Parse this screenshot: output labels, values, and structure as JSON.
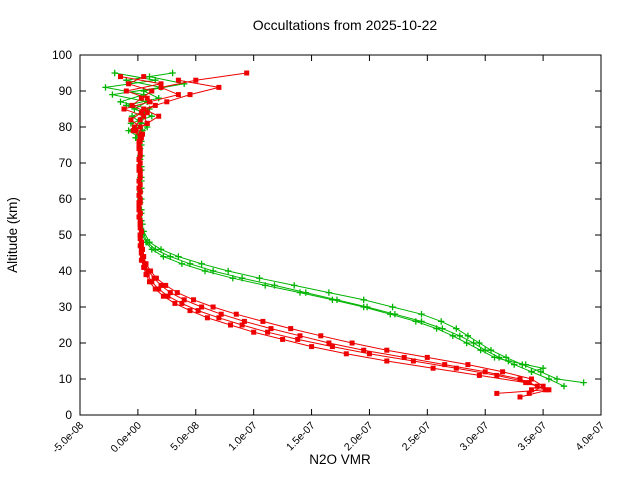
{
  "chart_data": {
    "type": "line",
    "title": "Occultations from 2025-10-22",
    "xlabel": "N2O VMR",
    "ylabel": "Altitude (km)",
    "xlim": [
      -5e-08,
      4e-07
    ],
    "ylim": [
      0,
      100
    ],
    "grid": false,
    "legend": "none",
    "vmr_scale": 1e-09,
    "colors": {
      "red": "#ee0000",
      "green": "#00b400",
      "axis": "#000000",
      "background": "#ffffff"
    },
    "x_ticks": [
      {
        "value": -5e-08,
        "label": "-5.0e-08"
      },
      {
        "value": 0.0,
        "label": "0.0e+00"
      },
      {
        "value": 5e-08,
        "label": "5.0e-08"
      },
      {
        "value": 1e-07,
        "label": "1.0e-07"
      },
      {
        "value": 1.5e-07,
        "label": "1.5e-07"
      },
      {
        "value": 2e-07,
        "label": "2.0e-07"
      },
      {
        "value": 2.5e-07,
        "label": "2.5e-07"
      },
      {
        "value": 3e-07,
        "label": "3.0e-07"
      },
      {
        "value": 3.5e-07,
        "label": "3.5e-07"
      },
      {
        "value": 4e-07,
        "label": "4.0e-07"
      }
    ],
    "y_ticks": [
      {
        "value": 0,
        "label": "0"
      },
      {
        "value": 10,
        "label": "10"
      },
      {
        "value": 20,
        "label": "20"
      },
      {
        "value": 30,
        "label": "30"
      },
      {
        "value": 40,
        "label": "40"
      },
      {
        "value": 50,
        "label": "50"
      },
      {
        "value": 60,
        "label": "60"
      },
      {
        "value": 70,
        "label": "70"
      },
      {
        "value": 80,
        "label": "80"
      },
      {
        "value": 90,
        "label": "90"
      },
      {
        "value": 100,
        "label": "100"
      }
    ],
    "series": [
      {
        "name": "green-1",
        "color": "green",
        "marker": "plus",
        "alt_km": [
          95,
          93,
          91,
          89,
          87,
          85,
          83,
          81,
          79,
          77,
          75,
          72,
          69,
          66,
          63,
          60,
          57,
          54,
          51,
          48,
          46,
          44,
          42,
          40,
          38,
          36,
          34,
          32,
          30,
          28,
          26,
          24,
          22,
          20,
          18,
          16,
          14,
          12,
          10,
          8
        ],
        "vmr_1e9": [
          -20,
          15,
          -28,
          5,
          -15,
          10,
          -5,
          3,
          -8,
          2,
          3,
          2,
          3,
          2,
          3,
          2,
          3,
          3,
          4,
          8,
          15,
          28,
          45,
          65,
          90,
          118,
          145,
          172,
          198,
          222,
          245,
          263,
          278,
          290,
          300,
          312,
          325,
          340,
          355,
          368
        ]
      },
      {
        "name": "green-2",
        "color": "green",
        "marker": "plus",
        "alt_km": [
          95,
          93,
          91,
          89,
          87,
          85,
          83,
          81,
          79,
          77,
          75,
          72,
          69,
          66,
          63,
          60,
          57,
          54,
          51,
          48,
          46,
          44,
          42,
          40,
          38,
          36,
          34,
          32,
          30,
          28,
          26,
          24,
          22,
          20,
          18,
          16,
          14,
          12,
          10,
          9
        ],
        "vmr_1e9": [
          30,
          -10,
          20,
          -22,
          8,
          -3,
          12,
          -6,
          4,
          -2,
          2,
          3,
          2,
          3,
          2,
          3,
          2,
          3,
          5,
          10,
          20,
          35,
          55,
          78,
          105,
          135,
          165,
          195,
          220,
          245,
          262,
          275,
          285,
          295,
          305,
          318,
          332,
          348,
          362,
          385
        ]
      },
      {
        "name": "green-3",
        "color": "green",
        "marker": "plus",
        "alt_km": [
          94,
          92,
          90,
          88,
          86,
          84,
          82,
          80,
          78,
          76,
          74,
          71,
          68,
          65,
          62,
          59,
          56,
          53,
          50,
          48,
          46,
          44,
          42,
          40,
          38,
          36,
          34,
          32,
          30,
          28,
          26,
          24,
          22,
          20,
          18,
          16,
          15,
          14,
          13,
          12
        ],
        "vmr_1e9": [
          10,
          40,
          5,
          18,
          -10,
          5,
          2,
          8,
          1,
          3,
          2,
          2,
          3,
          3,
          2,
          2,
          3,
          4,
          4,
          7,
          12,
          22,
          38,
          58,
          82,
          110,
          140,
          168,
          195,
          218,
          240,
          258,
          272,
          284,
          296,
          308,
          320,
          335,
          350,
          340
        ]
      },
      {
        "name": "red-1",
        "color": "red",
        "marker": "square",
        "alt_km": [
          94,
          92,
          90,
          88,
          86,
          84,
          82,
          80,
          78,
          76,
          74,
          71,
          68,
          65,
          62,
          59,
          56,
          53,
          50,
          48,
          46,
          44,
          42,
          40,
          38,
          36,
          34,
          32,
          30,
          28,
          26,
          24,
          22,
          20,
          18,
          16,
          14,
          12,
          10,
          8,
          7
        ],
        "vmr_1e9": [
          5,
          -8,
          12,
          3,
          -5,
          8,
          2,
          -3,
          4,
          1,
          2,
          1,
          2,
          1,
          2,
          1,
          2,
          2,
          2,
          3,
          3,
          4,
          6,
          9,
          14,
          20,
          28,
          40,
          55,
          72,
          92,
          115,
          140,
          165,
          195,
          230,
          265,
          300,
          330,
          345,
          340
        ]
      },
      {
        "name": "red-2",
        "color": "red",
        "marker": "square",
        "alt_km": [
          95,
          93,
          91,
          89,
          87,
          85,
          83,
          81,
          79,
          77,
          75,
          72,
          69,
          66,
          63,
          60,
          57,
          54,
          51,
          48,
          46,
          44,
          42,
          40,
          38,
          36,
          34,
          32,
          30,
          28,
          26,
          24,
          22,
          20,
          18,
          16,
          14,
          12,
          10,
          8,
          6
        ],
        "vmr_1e9": [
          94,
          50,
          20,
          35,
          10,
          -12,
          5,
          8,
          -2,
          3,
          1,
          2,
          1,
          2,
          1,
          2,
          1,
          2,
          3,
          3,
          4,
          5,
          7,
          11,
          16,
          24,
          34,
          48,
          65,
          85,
          108,
          132,
          158,
          185,
          215,
          250,
          285,
          315,
          340,
          350,
          338
        ]
      },
      {
        "name": "red-3",
        "color": "red",
        "marker": "square",
        "alt_km": [
          94,
          92,
          90,
          88,
          86,
          84,
          82,
          80,
          78,
          76,
          74,
          71,
          68,
          65,
          62,
          59,
          56,
          53,
          50,
          47,
          45,
          43,
          41,
          39,
          37,
          35,
          33,
          31,
          29,
          27,
          25,
          23,
          21,
          19,
          17,
          15,
          13,
          11,
          9,
          7,
          5
        ],
        "vmr_1e9": [
          -15,
          20,
          -10,
          8,
          15,
          3,
          -6,
          2,
          3,
          2,
          1,
          1,
          1,
          1,
          2,
          2,
          2,
          2,
          2,
          2,
          3,
          3,
          5,
          7,
          10,
          15,
          22,
          32,
          45,
          60,
          80,
          100,
          125,
          150,
          180,
          215,
          255,
          295,
          335,
          355,
          330
        ]
      },
      {
        "name": "red-4",
        "color": "red",
        "marker": "square",
        "alt_km": [
          93,
          91,
          89,
          87,
          85,
          83,
          81,
          79,
          77,
          75,
          73,
          70,
          67,
          64,
          61,
          58,
          55,
          52,
          49,
          47,
          45,
          43,
          41,
          39,
          37,
          35,
          33,
          31,
          29,
          27,
          25,
          23,
          21,
          19,
          17,
          15,
          13,
          11,
          9,
          7,
          6
        ],
        "vmr_1e9": [
          35,
          70,
          45,
          25,
          5,
          18,
          8,
          -4,
          2,
          1,
          2,
          2,
          2,
          2,
          1,
          1,
          1,
          2,
          2,
          3,
          3,
          4,
          6,
          8,
          12,
          18,
          26,
          38,
          52,
          70,
          90,
          112,
          138,
          168,
          200,
          238,
          275,
          310,
          338,
          352,
          310
        ]
      }
    ]
  }
}
